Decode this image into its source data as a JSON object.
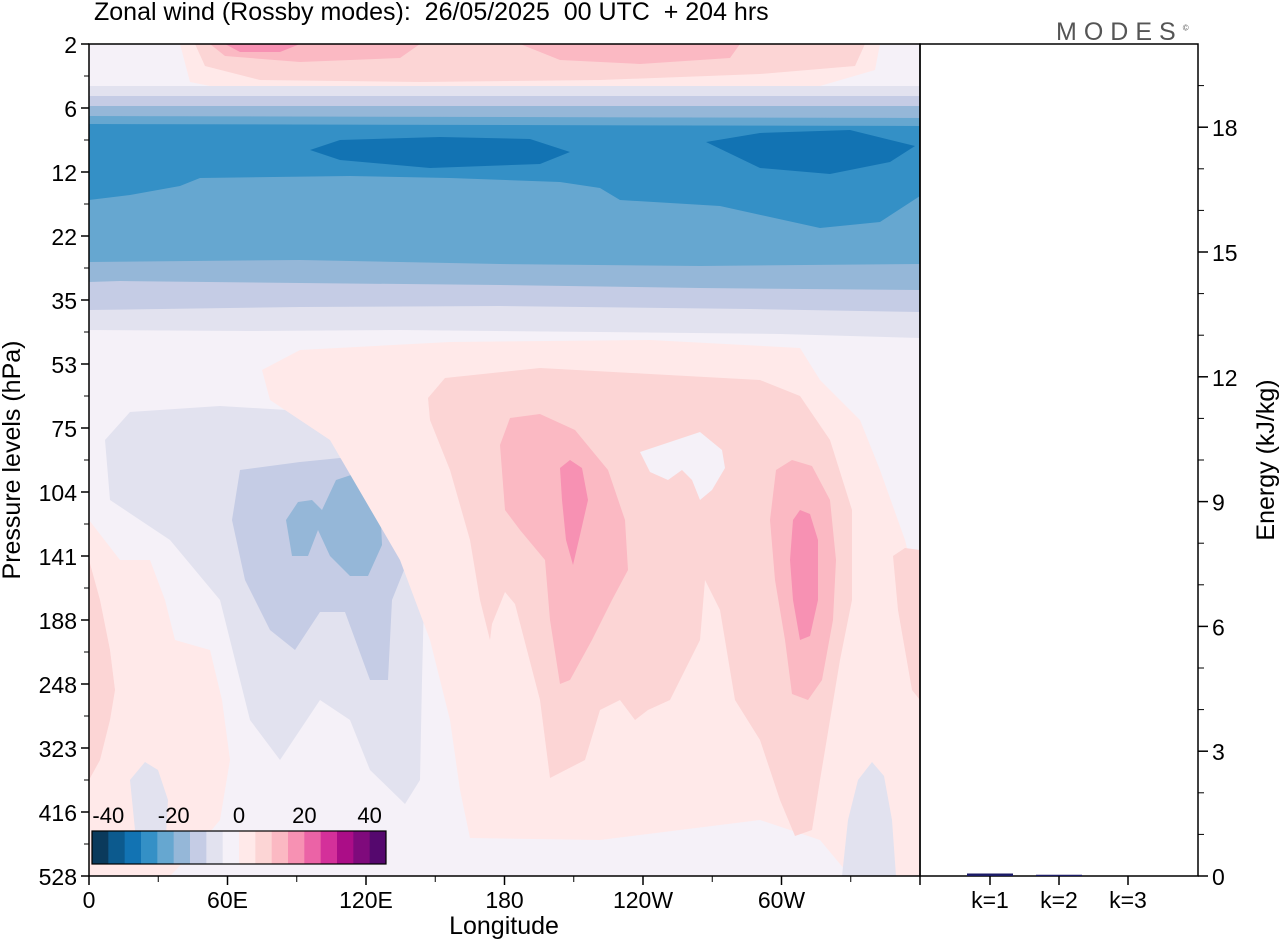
{
  "header": {
    "title": "Zonal wind (Rossby modes):  26/05/2025  00 UTC  + 204 hrs",
    "brand": "MODES",
    "brand_mark": "©"
  },
  "chart_data": [
    {
      "type": "heatmap",
      "title": "Zonal wind (Rossby modes):  26/05/2025  00 UTC  + 204 hrs",
      "xlabel": "Longitude",
      "ylabel": "Pressure levels (hPa)",
      "x_ticks": [
        "0",
        "60E",
        "120E",
        "180",
        "120W",
        "60W"
      ],
      "y_ticks": [
        "2",
        "6",
        "12",
        "22",
        "35",
        "53",
        "75",
        "104",
        "141",
        "188",
        "248",
        "323",
        "416",
        "528"
      ],
      "y_scale": "nonlinear (model levels, top at 2 hPa)",
      "colorbar": {
        "tick_labels": [
          "-40",
          "-20",
          "0",
          "20",
          "40"
        ],
        "range": [
          -45,
          45
        ],
        "step": 5,
        "colors": [
          "#0b3a5c",
          "#0c5a8e",
          "#1273b3",
          "#3490c6",
          "#66a7d0",
          "#95b7d8",
          "#c5cce5",
          "#e2e2ef",
          "#f5f1f8",
          "#ffe9e9",
          "#fcd5d5",
          "#fbb9c3",
          "#f791b3",
          "#eb63a6",
          "#d4309a",
          "#ab0d87",
          "#7f0a7c",
          "#55086e"
        ]
      },
      "fields": [
        {
          "level_band": "2–5 hPa",
          "description": "weak westerly (pink) band, max ~+20 near 30E and 90W"
        },
        {
          "level_band": "6–30 hPa",
          "description": "strong easterly (blue) band, min about -25 to -30 near 10–15 hPa"
        },
        {
          "level_band": "75–400 hPa",
          "description": "negative blob ~-15 near 60E–120E; positive cells ~+20 near 180–160W and ~70W"
        }
      ]
    },
    {
      "type": "bar",
      "categories": [
        "k=1",
        "k=2",
        "k=3"
      ],
      "values": [
        0.06,
        0.03,
        0.0
      ],
      "ylabel": "Energy (kJ/kg)",
      "ylim": [
        0,
        20
      ],
      "y_ticks": [
        "0",
        "3",
        "6",
        "9",
        "12",
        "15",
        "18"
      ],
      "bar_color": "#1b1b66"
    }
  ]
}
